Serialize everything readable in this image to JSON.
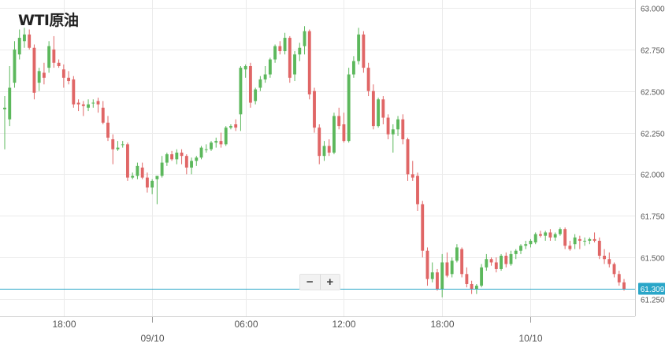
{
  "title": "WTI原油",
  "zoom": {
    "minus_label": "−",
    "plus_label": "+"
  },
  "colors": {
    "up": "#5cb85c",
    "down": "#e06666",
    "price_line": "#2aa6c8",
    "grid": "#ebebeb"
  },
  "chart_data": {
    "type": "candlestick",
    "title": "WTI原油",
    "ylim": [
      61.2,
      63.0
    ],
    "y_ticks": [
      63.0,
      62.75,
      62.5,
      62.25,
      62.0,
      61.75,
      61.5,
      61.25
    ],
    "y_tick_labels": [
      "63.000",
      "62.750",
      "62.500",
      "62.250",
      "62.000",
      "61.750",
      "61.500",
      "61.250"
    ],
    "x_ticks": [
      {
        "label": "18:00",
        "date_label": "",
        "bar": 12,
        "tick": false
      },
      {
        "label": "",
        "date_label": "09/10",
        "bar": 30,
        "tick": true
      },
      {
        "label": "06:00",
        "date_label": "",
        "bar": 49,
        "tick": false
      },
      {
        "label": "12:00",
        "date_label": "",
        "bar": 69,
        "tick": false
      },
      {
        "label": "18:00",
        "date_label": "",
        "bar": 89,
        "tick": false
      },
      {
        "label": "",
        "date_label": "10/10",
        "bar": 107,
        "tick": true
      }
    ],
    "last_price": 61.309,
    "last_price_label": "61.309",
    "candles": [
      [
        62.39,
        62.47,
        62.15,
        62.4
      ],
      [
        62.33,
        62.65,
        62.29,
        62.52
      ],
      [
        62.55,
        62.8,
        62.52,
        62.75
      ],
      [
        62.72,
        62.87,
        62.69,
        62.82
      ],
      [
        62.8,
        62.88,
        62.76,
        62.84
      ],
      [
        62.84,
        62.87,
        62.75,
        62.76
      ],
      [
        62.76,
        62.78,
        62.45,
        62.49
      ],
      [
        62.55,
        62.64,
        62.5,
        62.62
      ],
      [
        62.61,
        62.67,
        62.54,
        62.58
      ],
      [
        62.64,
        62.8,
        62.61,
        62.77
      ],
      [
        62.75,
        62.83,
        62.64,
        62.67
      ],
      [
        62.67,
        62.69,
        62.64,
        62.65
      ],
      [
        62.63,
        62.66,
        62.52,
        62.58
      ],
      [
        62.58,
        62.62,
        62.54,
        62.56
      ],
      [
        62.57,
        62.59,
        62.4,
        62.42
      ],
      [
        62.43,
        62.45,
        62.38,
        62.42
      ],
      [
        62.42,
        62.44,
        62.35,
        62.41
      ],
      [
        62.4,
        62.45,
        62.38,
        62.42
      ],
      [
        62.43,
        62.45,
        62.4,
        62.43
      ],
      [
        62.44,
        62.46,
        62.37,
        62.42
      ],
      [
        62.4,
        62.44,
        62.3,
        62.31
      ],
      [
        62.31,
        62.35,
        62.2,
        62.22
      ],
      [
        62.21,
        62.24,
        62.06,
        62.15
      ],
      [
        62.15,
        62.2,
        62.14,
        62.16
      ],
      [
        62.18,
        62.2,
        62.16,
        62.18
      ],
      [
        62.18,
        62.19,
        61.96,
        61.98
      ],
      [
        61.98,
        62.01,
        61.97,
        61.99
      ],
      [
        61.99,
        62.07,
        61.97,
        62.05
      ],
      [
        62.04,
        62.07,
        61.97,
        61.98
      ],
      [
        61.98,
        62.01,
        61.89,
        61.92
      ],
      [
        61.92,
        61.97,
        61.88,
        61.96
      ],
      [
        61.97,
        61.99,
        61.82,
        61.99
      ],
      [
        61.99,
        62.11,
        61.98,
        62.07
      ],
      [
        62.07,
        62.13,
        62.05,
        62.12
      ],
      [
        62.12,
        62.14,
        62.08,
        62.09
      ],
      [
        62.09,
        62.15,
        62.06,
        62.13
      ],
      [
        62.13,
        62.15,
        62.06,
        62.11
      ],
      [
        62.11,
        62.12,
        62.0,
        62.04
      ],
      [
        62.04,
        62.1,
        62.0,
        62.08
      ],
      [
        62.08,
        62.11,
        62.05,
        62.1
      ],
      [
        62.1,
        62.17,
        62.09,
        62.16
      ],
      [
        62.15,
        62.18,
        62.13,
        62.15
      ],
      [
        62.15,
        62.2,
        62.14,
        62.19
      ],
      [
        62.19,
        62.22,
        62.16,
        62.2
      ],
      [
        62.2,
        62.25,
        62.16,
        62.18
      ],
      [
        62.18,
        62.29,
        62.17,
        62.28
      ],
      [
        62.28,
        62.3,
        62.27,
        62.29
      ],
      [
        62.3,
        62.33,
        62.26,
        62.28
      ],
      [
        62.36,
        62.65,
        62.26,
        62.64
      ],
      [
        62.63,
        62.66,
        62.58,
        62.65
      ],
      [
        62.65,
        62.67,
        62.4,
        62.43
      ],
      [
        62.44,
        62.52,
        62.42,
        62.51
      ],
      [
        62.52,
        62.59,
        62.5,
        62.57
      ],
      [
        62.57,
        62.65,
        62.55,
        62.6
      ],
      [
        62.6,
        62.7,
        62.58,
        62.69
      ],
      [
        62.69,
        62.78,
        62.67,
        62.77
      ],
      [
        62.77,
        62.8,
        62.72,
        62.74
      ],
      [
        62.74,
        62.85,
        62.72,
        62.82
      ],
      [
        62.82,
        62.83,
        62.55,
        62.58
      ],
      [
        62.6,
        62.74,
        62.56,
        62.72
      ],
      [
        62.72,
        62.79,
        62.68,
        62.76
      ],
      [
        62.77,
        62.89,
        62.72,
        62.86
      ],
      [
        62.86,
        62.87,
        62.45,
        62.48
      ],
      [
        62.5,
        62.52,
        62.25,
        62.28
      ],
      [
        62.28,
        62.3,
        62.06,
        62.11
      ],
      [
        62.11,
        62.2,
        62.08,
        62.17
      ],
      [
        62.17,
        62.21,
        62.11,
        62.13
      ],
      [
        62.13,
        62.37,
        62.12,
        62.35
      ],
      [
        62.35,
        62.4,
        62.27,
        62.29
      ],
      [
        62.3,
        62.37,
        62.19,
        62.2
      ],
      [
        62.2,
        62.64,
        62.19,
        62.6
      ],
      [
        62.6,
        62.71,
        62.58,
        62.68
      ],
      [
        62.68,
        62.88,
        62.66,
        62.84
      ],
      [
        62.84,
        62.86,
        62.61,
        62.64
      ],
      [
        62.64,
        62.67,
        62.47,
        62.5
      ],
      [
        62.5,
        62.54,
        62.27,
        62.29
      ],
      [
        62.29,
        62.46,
        62.28,
        62.45
      ],
      [
        62.45,
        62.47,
        62.3,
        62.34
      ],
      [
        62.34,
        62.36,
        62.21,
        62.24
      ],
      [
        62.24,
        62.3,
        62.13,
        62.27
      ],
      [
        62.27,
        62.35,
        62.23,
        62.33
      ],
      [
        62.33,
        62.36,
        62.18,
        62.21
      ],
      [
        62.21,
        62.22,
        61.96,
        62.0
      ],
      [
        62.0,
        62.08,
        61.96,
        61.98
      ],
      [
        61.99,
        62.01,
        61.78,
        61.82
      ],
      [
        61.82,
        61.84,
        61.5,
        61.54
      ],
      [
        61.54,
        61.56,
        61.33,
        61.37
      ],
      [
        61.37,
        61.47,
        61.35,
        61.41
      ],
      [
        61.41,
        61.43,
        61.3,
        61.31
      ],
      [
        61.31,
        61.52,
        61.26,
        61.47
      ],
      [
        61.47,
        61.53,
        61.38,
        61.39
      ],
      [
        61.4,
        61.5,
        61.38,
        61.48
      ],
      [
        61.48,
        61.58,
        61.47,
        61.56
      ],
      [
        61.55,
        61.56,
        61.38,
        61.4
      ],
      [
        61.4,
        61.44,
        61.32,
        61.34
      ],
      [
        61.34,
        61.36,
        61.28,
        61.31
      ],
      [
        61.31,
        61.34,
        61.28,
        61.33
      ],
      [
        61.33,
        61.46,
        61.32,
        61.44
      ],
      [
        61.44,
        61.52,
        61.42,
        61.49
      ],
      [
        61.49,
        61.5,
        61.45,
        61.47
      ],
      [
        61.47,
        61.5,
        61.41,
        61.43
      ],
      [
        61.43,
        61.52,
        61.42,
        61.51
      ],
      [
        61.51,
        61.53,
        61.44,
        61.46
      ],
      [
        61.46,
        61.54,
        61.45,
        61.52
      ],
      [
        61.52,
        61.55,
        61.49,
        61.54
      ],
      [
        61.54,
        61.58,
        61.52,
        61.57
      ],
      [
        61.57,
        61.6,
        61.55,
        61.58
      ],
      [
        61.58,
        61.61,
        61.56,
        61.6
      ],
      [
        61.59,
        61.65,
        61.58,
        61.64
      ],
      [
        61.64,
        61.66,
        61.62,
        61.63
      ],
      [
        61.63,
        61.66,
        61.6,
        61.65
      ],
      [
        61.65,
        61.67,
        61.6,
        61.62
      ],
      [
        61.62,
        61.65,
        61.6,
        61.64
      ],
      [
        61.64,
        61.68,
        61.63,
        61.67
      ],
      [
        61.67,
        61.68,
        61.55,
        61.57
      ],
      [
        61.57,
        61.6,
        61.54,
        61.55
      ],
      [
        61.58,
        61.64,
        61.55,
        61.62
      ],
      [
        61.61,
        61.63,
        61.55,
        61.6
      ],
      [
        61.6,
        61.62,
        61.57,
        61.6
      ],
      [
        61.6,
        61.62,
        61.58,
        61.61
      ],
      [
        61.61,
        61.65,
        61.59,
        61.6
      ],
      [
        61.6,
        61.62,
        61.49,
        61.51
      ],
      [
        61.51,
        61.55,
        61.46,
        61.49
      ],
      [
        61.49,
        61.53,
        61.44,
        61.46
      ],
      [
        61.46,
        61.47,
        61.38,
        61.4
      ],
      [
        61.4,
        61.42,
        61.33,
        61.35
      ],
      [
        61.35,
        61.37,
        61.3,
        61.31
      ]
    ]
  }
}
